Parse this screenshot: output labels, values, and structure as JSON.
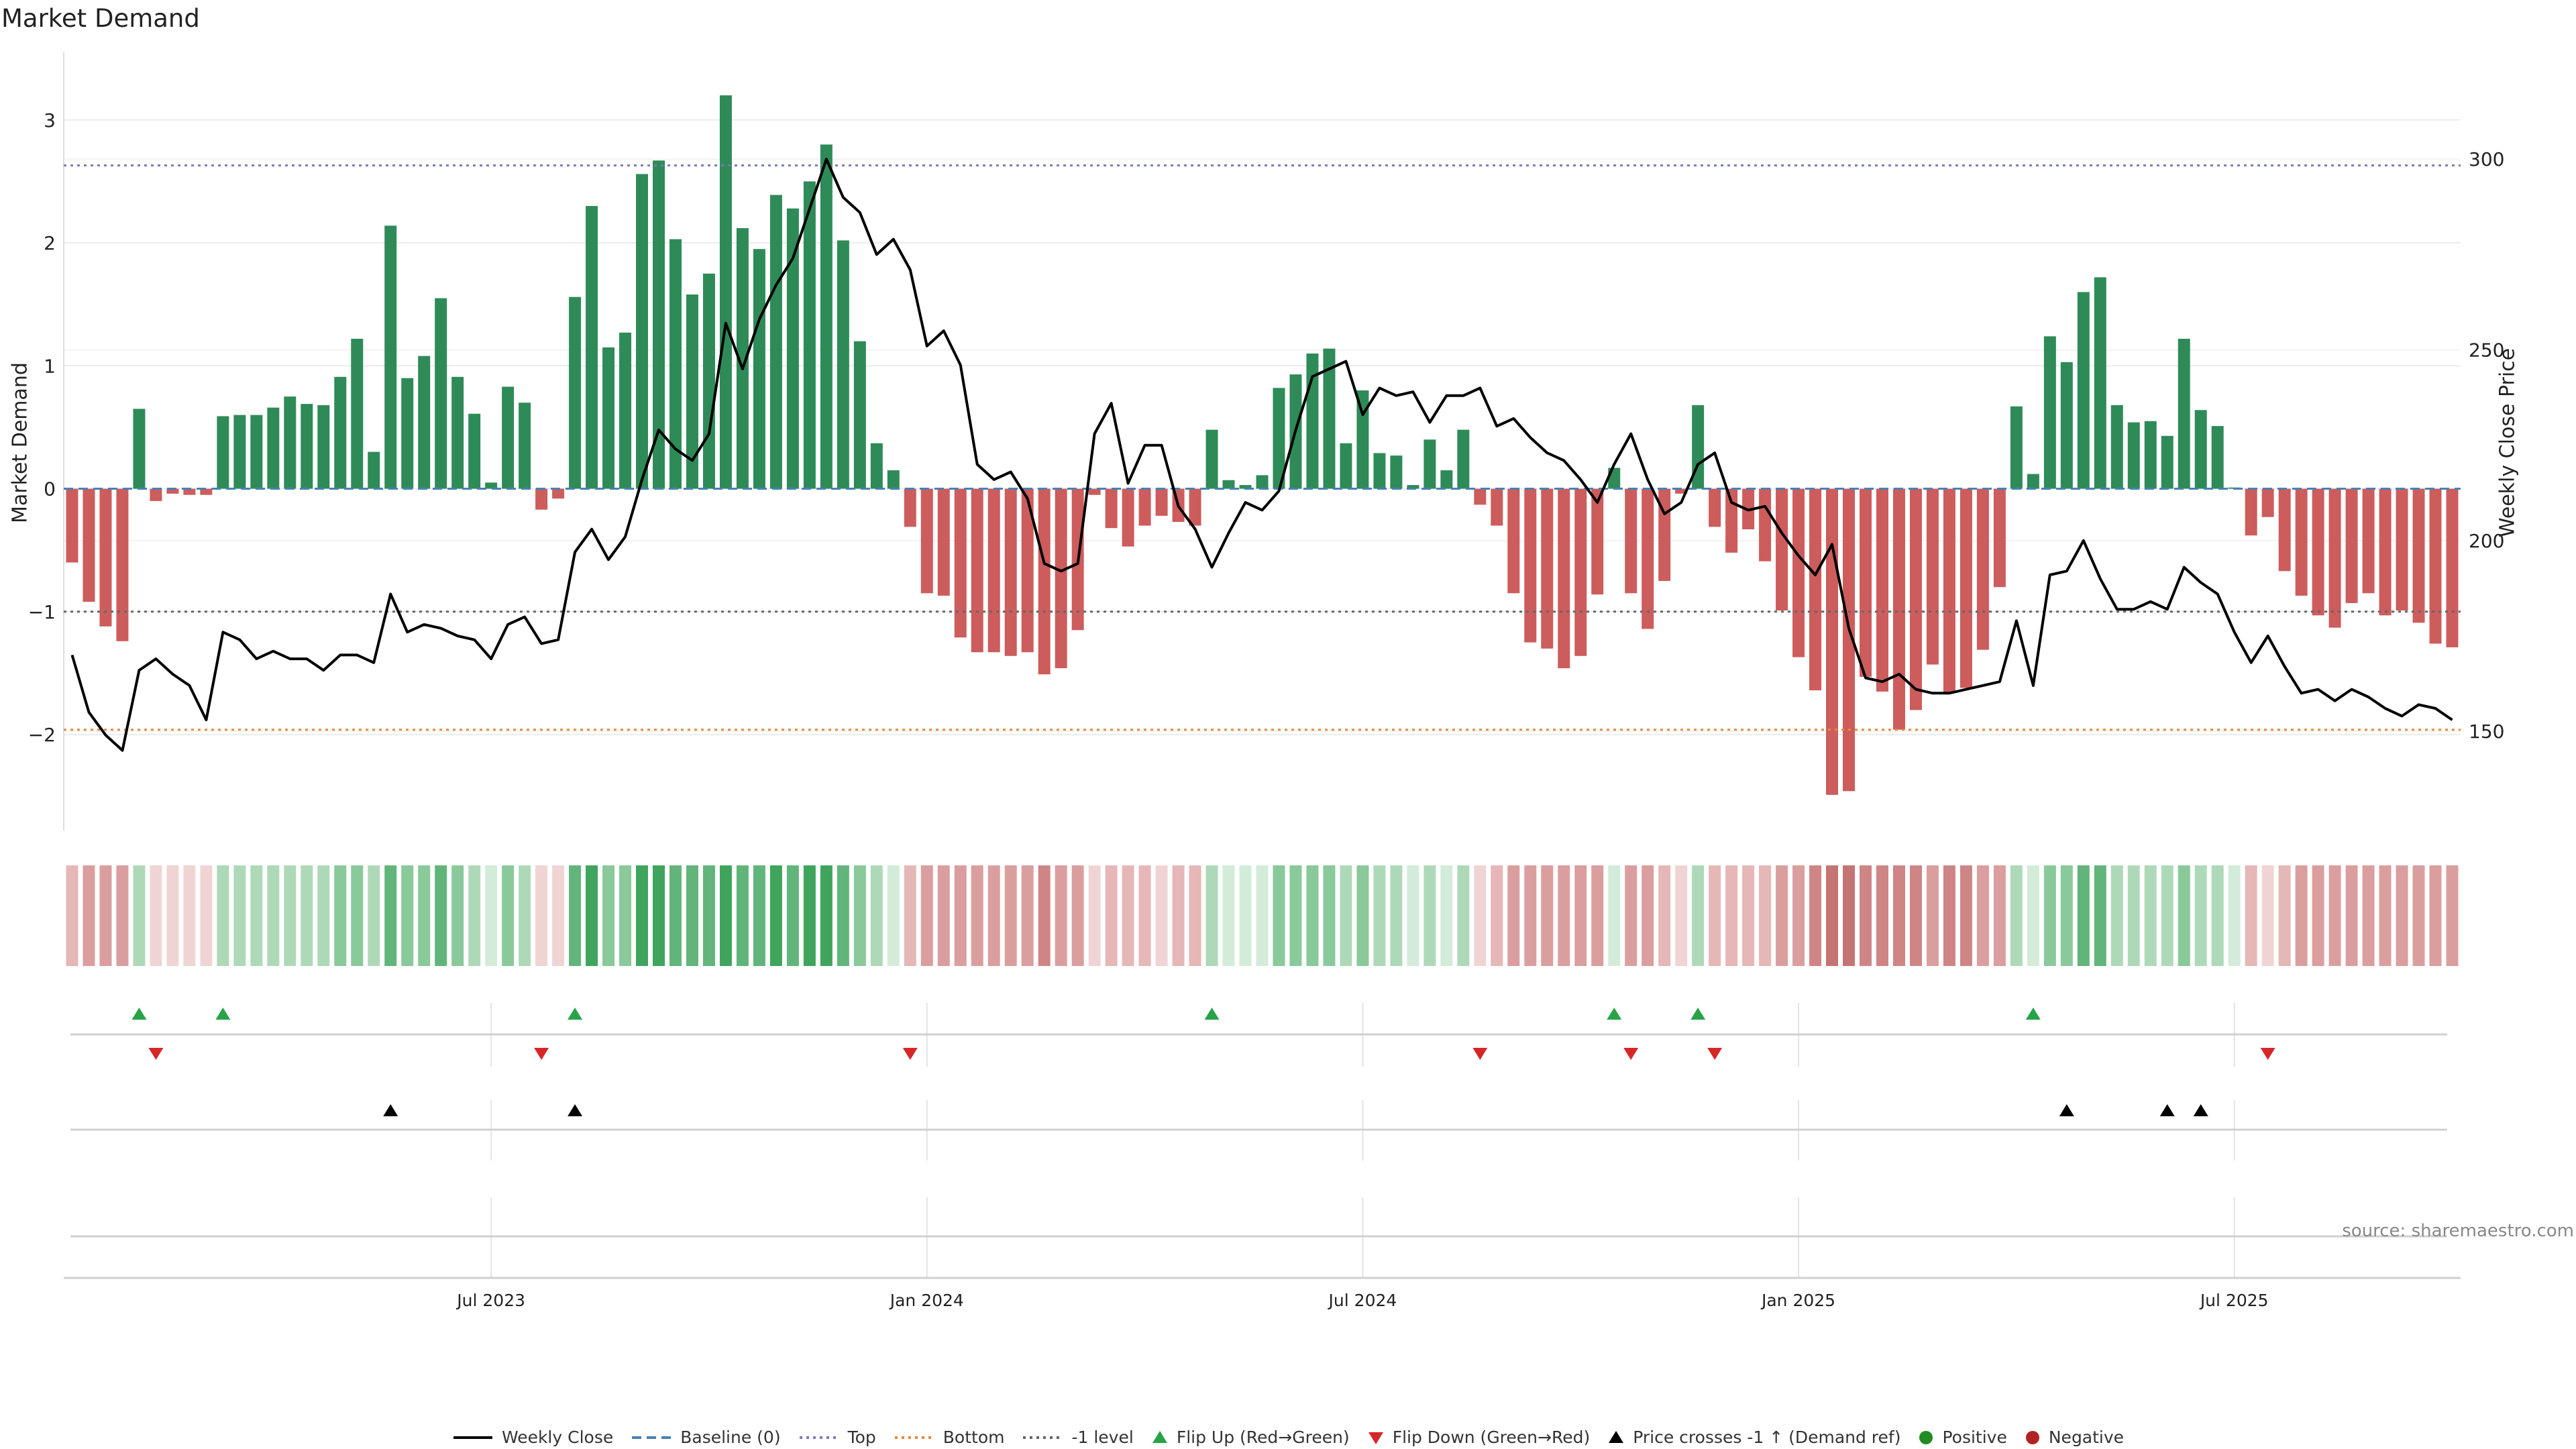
{
  "colors": {
    "positive_bar": "#2e8b57",
    "negative_bar": "#cd5c5c",
    "price_line": "#000000",
    "baseline": "#4682b4",
    "top_line": "#7b7bb8",
    "bottom_line": "#e8883a",
    "minus_one_line": "#666666",
    "flip_up": "#27a348",
    "flip_down": "#d62728",
    "cross_marker": "#000000"
  },
  "chart_data": {
    "type": "bar",
    "title": "Market Demand",
    "ylabel_left": "Market Demand",
    "ylabel_right": "Weekly Close Price",
    "source": "source: sharemaestro.com",
    "x_date_start": "2023-01-06",
    "x_step_days": 7,
    "x_ticks": [
      {
        "label": "Jul 2023",
        "week": 25
      },
      {
        "label": "Jan 2024",
        "week": 51
      },
      {
        "label": "Jul 2024",
        "week": 77
      },
      {
        "label": "Jan 2025",
        "week": 103
      },
      {
        "label": "Jul 2025",
        "week": 129
      }
    ],
    "ylim_left": [
      -2.78,
      3.55
    ],
    "yticks_left": [
      3,
      2,
      1,
      0,
      -1,
      -2
    ],
    "ylim_right": [
      124,
      328
    ],
    "yticks_right": [
      300,
      250,
      200,
      150
    ],
    "levels": {
      "top": 2.63,
      "bottom": -1.96,
      "minus_one": -1,
      "baseline": 0
    },
    "demand": [
      -0.6,
      -0.92,
      -1.12,
      -1.24,
      0.65,
      -0.1,
      -0.04,
      -0.05,
      -0.05,
      0.59,
      0.6,
      0.6,
      0.66,
      0.75,
      0.69,
      0.68,
      0.91,
      1.22,
      0.3,
      2.14,
      0.9,
      1.08,
      1.55,
      0.91,
      0.61,
      0.05,
      0.83,
      0.7,
      -0.17,
      -0.08,
      1.56,
      2.3,
      1.15,
      1.27,
      2.56,
      2.67,
      2.03,
      1.58,
      1.75,
      3.2,
      2.12,
      1.95,
      2.39,
      2.28,
      2.5,
      2.8,
      2.02,
      1.2,
      0.37,
      0.15,
      -0.31,
      -0.85,
      -0.87,
      -1.21,
      -1.33,
      -1.33,
      -1.36,
      -1.33,
      -1.51,
      -1.46,
      -1.15,
      -0.05,
      -0.32,
      -0.47,
      -0.3,
      -0.22,
      -0.27,
      -0.3,
      0.48,
      0.07,
      0.03,
      0.11,
      0.82,
      0.93,
      1.1,
      1.14,
      0.37,
      0.8,
      0.29,
      0.27,
      0.03,
      0.4,
      0.15,
      0.48,
      -0.13,
      -0.3,
      -0.85,
      -1.25,
      -1.3,
      -1.46,
      -1.36,
      -0.86,
      0.17,
      -0.85,
      -1.14,
      -0.75,
      -0.04,
      0.68,
      -0.31,
      -0.52,
      -0.33,
      -0.59,
      -0.99,
      -1.37,
      -1.64,
      -2.49,
      -2.46,
      -1.53,
      -1.65,
      -1.96,
      -1.8,
      -1.43,
      -1.66,
      -1.62,
      -1.31,
      -0.8,
      0.67,
      0.12,
      1.24,
      1.03,
      1.6,
      1.72,
      0.68,
      0.54,
      0.55,
      0.43,
      1.22,
      0.64,
      0.51,
      0.01,
      -0.38,
      -0.23,
      -0.67,
      -0.87,
      -1.03,
      -1.13,
      -0.93,
      -0.85,
      -1.03,
      -0.99,
      -1.09,
      -1.26,
      -1.29
    ],
    "close": [
      170,
      155,
      149,
      145,
      166,
      169,
      165,
      162,
      153,
      176,
      174,
      169,
      171,
      169,
      169,
      166,
      170,
      170,
      168,
      186,
      176,
      178,
      177,
      175,
      174,
      169,
      178,
      180,
      173,
      174,
      197,
      203,
      195,
      201,
      216,
      229,
      224,
      221,
      228,
      257,
      245,
      258,
      267,
      274,
      287,
      300,
      290,
      286,
      275,
      279,
      271,
      251,
      255,
      246,
      220,
      216,
      218,
      211,
      194,
      192,
      194,
      228,
      236,
      215,
      225,
      225,
      209,
      203,
      193,
      202,
      210,
      208,
      213,
      229,
      243,
      245,
      247,
      233,
      240,
      238,
      239,
      231,
      238,
      238,
      240,
      230,
      232,
      227,
      223,
      221,
      216,
      210,
      220,
      228,
      216,
      207,
      210,
      220,
      223,
      210,
      208,
      209,
      202,
      196,
      191,
      199,
      177,
      164,
      163,
      165,
      161,
      160,
      160,
      161,
      162,
      163,
      179,
      162,
      191,
      192,
      200,
      190,
      182,
      182,
      184,
      182,
      193,
      189,
      186,
      176,
      168,
      175,
      167,
      160,
      161,
      158,
      161,
      159,
      156,
      154,
      157,
      156,
      153
    ]
  },
  "signal_strip": {
    "green_shades": [
      "#d2ecd9",
      "#aed9b9",
      "#89c99a",
      "#62b57a",
      "#3fa55c"
    ],
    "red_shades": [
      "#f0d4d4",
      "#e6b7b7",
      "#db9e9e",
      "#cf8585",
      "#c57474"
    ]
  },
  "events": {
    "flip_up": [
      4,
      9,
      30,
      68,
      92,
      97,
      117
    ],
    "flip_down": [
      5,
      28,
      50,
      84,
      93,
      98,
      131
    ],
    "price_cross": [
      19,
      30,
      119,
      125,
      127
    ]
  },
  "legend": [
    {
      "label": "Weekly Close",
      "kind": "line-solid",
      "color": "#000000"
    },
    {
      "label": "Baseline (0)",
      "kind": "line-dash",
      "color": "#4682b4"
    },
    {
      "label": "Top",
      "kind": "line-dot",
      "color": "#7b7bb8"
    },
    {
      "label": "Bottom",
      "kind": "line-dot",
      "color": "#e8883a"
    },
    {
      "label": "-1 level",
      "kind": "line-dot",
      "color": "#666666"
    },
    {
      "label": "Flip Up (Red→Green)",
      "kind": "tri-up",
      "color": "#27a348"
    },
    {
      "label": "Flip Down (Green→Red)",
      "kind": "tri-down",
      "color": "#d62728"
    },
    {
      "label": "Price crosses -1 ↑ (Demand ref)",
      "kind": "tri-up",
      "color": "#000000"
    },
    {
      "label": "Positive",
      "kind": "circle",
      "color": "#228b22"
    },
    {
      "label": "Negative",
      "kind": "circle",
      "color": "#b22222"
    }
  ]
}
